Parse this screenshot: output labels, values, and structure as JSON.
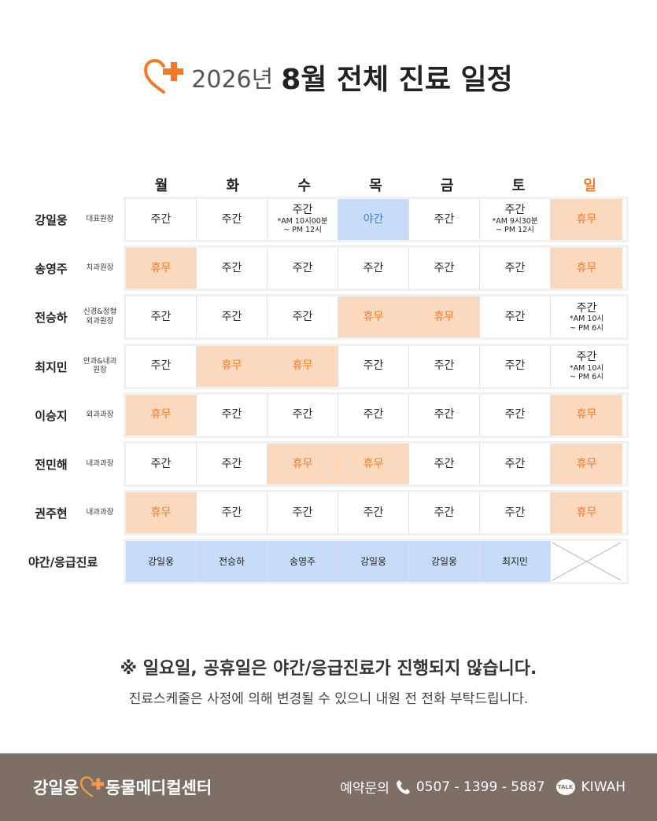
{
  "header": {
    "year": "2026년",
    "title": "8월 전체 진료 일정"
  },
  "days": [
    {
      "label": "월",
      "color": "#222222"
    },
    {
      "label": "화",
      "color": "#222222"
    },
    {
      "label": "수",
      "color": "#222222"
    },
    {
      "label": "목",
      "color": "#222222"
    },
    {
      "label": "금",
      "color": "#222222"
    },
    {
      "label": "토",
      "color": "#222222"
    },
    {
      "label": "일",
      "color": "#f07a2a"
    }
  ],
  "doctors": [
    {
      "name": "강일웅",
      "role": [
        "대표원장"
      ],
      "cells": [
        {
          "lines": [
            "주간"
          ],
          "color": "#ffffff",
          "text_color": "#222222"
        },
        {
          "lines": [
            "주간"
          ],
          "color": "#ffffff",
          "text_color": "#222222"
        },
        {
          "lines": [
            "주간",
            "*AM 10시00분",
            "~ PM 12시"
          ],
          "color": "#ffffff",
          "text_color": "#222222"
        },
        {
          "lines": [
            "야간"
          ],
          "color": "#c7dcf8",
          "text_color": "#4a78c8"
        },
        {
          "lines": [
            "주간"
          ],
          "color": "#ffffff",
          "text_color": "#222222"
        },
        {
          "lines": [
            "주간",
            "*AM 9시30분",
            "~ PM 12시"
          ],
          "color": "#ffffff",
          "text_color": "#222222"
        },
        {
          "lines": [
            "휴무"
          ],
          "color": "#fbd9bf",
          "text_color": "#f07a2a"
        }
      ]
    },
    {
      "name": "송영주",
      "role": [
        "치과원장"
      ],
      "cells": [
        {
          "lines": [
            "휴무"
          ],
          "color": "#fbd9bf",
          "text_color": "#f07a2a"
        },
        {
          "lines": [
            "주간"
          ],
          "color": "#ffffff",
          "text_color": "#222222"
        },
        {
          "lines": [
            "주간"
          ],
          "color": "#ffffff",
          "text_color": "#222222"
        },
        {
          "lines": [
            "주간"
          ],
          "color": "#ffffff",
          "text_color": "#222222"
        },
        {
          "lines": [
            "주간"
          ],
          "color": "#ffffff",
          "text_color": "#222222"
        },
        {
          "lines": [
            "주간"
          ],
          "color": "#ffffff",
          "text_color": "#222222"
        },
        {
          "lines": [
            "휴무"
          ],
          "color": "#fbd9bf",
          "text_color": "#f07a2a"
        }
      ]
    },
    {
      "name": "전승하",
      "role": [
        "신경&정형",
        "외과원장"
      ],
      "cells": [
        {
          "lines": [
            "주간"
          ],
          "color": "#ffffff",
          "text_color": "#222222"
        },
        {
          "lines": [
            "주간"
          ],
          "color": "#ffffff",
          "text_color": "#222222"
        },
        {
          "lines": [
            "주간"
          ],
          "color": "#ffffff",
          "text_color": "#222222"
        },
        {
          "lines": [
            "휴무"
          ],
          "color": "#fbd9bf",
          "text_color": "#f07a2a"
        },
        {
          "lines": [
            "휴무"
          ],
          "color": "#fbd9bf",
          "text_color": "#f07a2a"
        },
        {
          "lines": [
            "주간"
          ],
          "color": "#ffffff",
          "text_color": "#222222"
        },
        {
          "lines": [
            "주간",
            "*AM 10시",
            "~ PM 6시"
          ],
          "color": "#ffffff",
          "text_color": "#222222"
        }
      ]
    },
    {
      "name": "최지민",
      "role": [
        "안과&내과",
        "원장"
      ],
      "cells": [
        {
          "lines": [
            "주간"
          ],
          "color": "#ffffff",
          "text_color": "#222222"
        },
        {
          "lines": [
            "휴무"
          ],
          "color": "#fbd9bf",
          "text_color": "#f07a2a"
        },
        {
          "lines": [
            "휴무"
          ],
          "color": "#fbd9bf",
          "text_color": "#f07a2a"
        },
        {
          "lines": [
            "주간"
          ],
          "color": "#ffffff",
          "text_color": "#222222"
        },
        {
          "lines": [
            "주간"
          ],
          "color": "#ffffff",
          "text_color": "#222222"
        },
        {
          "lines": [
            "주간"
          ],
          "color": "#ffffff",
          "text_color": "#222222"
        },
        {
          "lines": [
            "주간",
            "*AM 10시",
            "~ PM 6시"
          ],
          "color": "#ffffff",
          "text_color": "#222222"
        }
      ]
    },
    {
      "name": "이승지",
      "role": [
        "외과과장"
      ],
      "cells": [
        {
          "lines": [
            "휴무"
          ],
          "color": "#fbd9bf",
          "text_color": "#f07a2a"
        },
        {
          "lines": [
            "주간"
          ],
          "color": "#ffffff",
          "text_color": "#222222"
        },
        {
          "lines": [
            "주간"
          ],
          "color": "#ffffff",
          "text_color": "#222222"
        },
        {
          "lines": [
            "주간"
          ],
          "color": "#ffffff",
          "text_color": "#222222"
        },
        {
          "lines": [
            "주간"
          ],
          "color": "#ffffff",
          "text_color": "#222222"
        },
        {
          "lines": [
            "주간"
          ],
          "color": "#ffffff",
          "text_color": "#222222"
        },
        {
          "lines": [
            "휴무"
          ],
          "color": "#fbd9bf",
          "text_color": "#f07a2a"
        }
      ]
    },
    {
      "name": "전민해",
      "role": [
        "내과과장"
      ],
      "cells": [
        {
          "lines": [
            "주간"
          ],
          "color": "#ffffff",
          "text_color": "#222222"
        },
        {
          "lines": [
            "주간"
          ],
          "color": "#ffffff",
          "text_color": "#222222"
        },
        {
          "lines": [
            "휴무"
          ],
          "color": "#fbd9bf",
          "text_color": "#f07a2a"
        },
        {
          "lines": [
            "휴무"
          ],
          "color": "#fbd9bf",
          "text_color": "#f07a2a"
        },
        {
          "lines": [
            "주간"
          ],
          "color": "#ffffff",
          "text_color": "#222222"
        },
        {
          "lines": [
            "주간"
          ],
          "color": "#ffffff",
          "text_color": "#222222"
        },
        {
          "lines": [
            "휴무"
          ],
          "color": "#fbd9bf",
          "text_color": "#f07a2a"
        }
      ]
    },
    {
      "name": "권주현",
      "role": [
        "내과과장"
      ],
      "cells": [
        {
          "lines": [
            "휴무"
          ],
          "color": "#fbd9bf",
          "text_color": "#f07a2a"
        },
        {
          "lines": [
            "주간"
          ],
          "color": "#ffffff",
          "text_color": "#222222"
        },
        {
          "lines": [
            "주간"
          ],
          "color": "#ffffff",
          "text_color": "#222222"
        },
        {
          "lines": [
            "주간"
          ],
          "color": "#ffffff",
          "text_color": "#222222"
        },
        {
          "lines": [
            "주간"
          ],
          "color": "#ffffff",
          "text_color": "#222222"
        },
        {
          "lines": [
            "주간"
          ],
          "color": "#ffffff",
          "text_color": "#222222"
        },
        {
          "lines": [
            "휴무"
          ],
          "color": "#fbd9bf",
          "text_color": "#f07a2a"
        }
      ]
    }
  ],
  "night": {
    "label": "야간/응급진료",
    "cells": [
      {
        "lines": [
          "강일웅"
        ],
        "color": "#c7dcf8",
        "text_color": "#222222"
      },
      {
        "lines": [
          "전승하"
        ],
        "color": "#c7dcf8",
        "text_color": "#222222"
      },
      {
        "lines": [
          "송영주"
        ],
        "color": "#c7dcf8",
        "text_color": "#222222"
      },
      {
        "lines": [
          "강일웅"
        ],
        "color": "#c7dcf8",
        "text_color": "#222222"
      },
      {
        "lines": [
          "강일웅"
        ],
        "color": "#c7dcf8",
        "text_color": "#222222"
      },
      {
        "lines": [
          "최지민"
        ],
        "color": "#c7dcf8",
        "text_color": "#222222"
      },
      null
    ]
  },
  "notice": {
    "line1": "※ 일요일, 공휴일은 야간/응급진료가 진행되지 않습니다.",
    "line2": "진료스케줄은 사정에 의해 변경될 수 있으니 내원 전 전화 부탁드립니다."
  },
  "footer": {
    "brand_left": "강일웅",
    "brand_right": "동물메디컬센터",
    "contact_label": "예약문의",
    "phone": "0507 - 1399 - 5887",
    "talk_icon": "TALK",
    "kakao_id": "KIWAH"
  }
}
